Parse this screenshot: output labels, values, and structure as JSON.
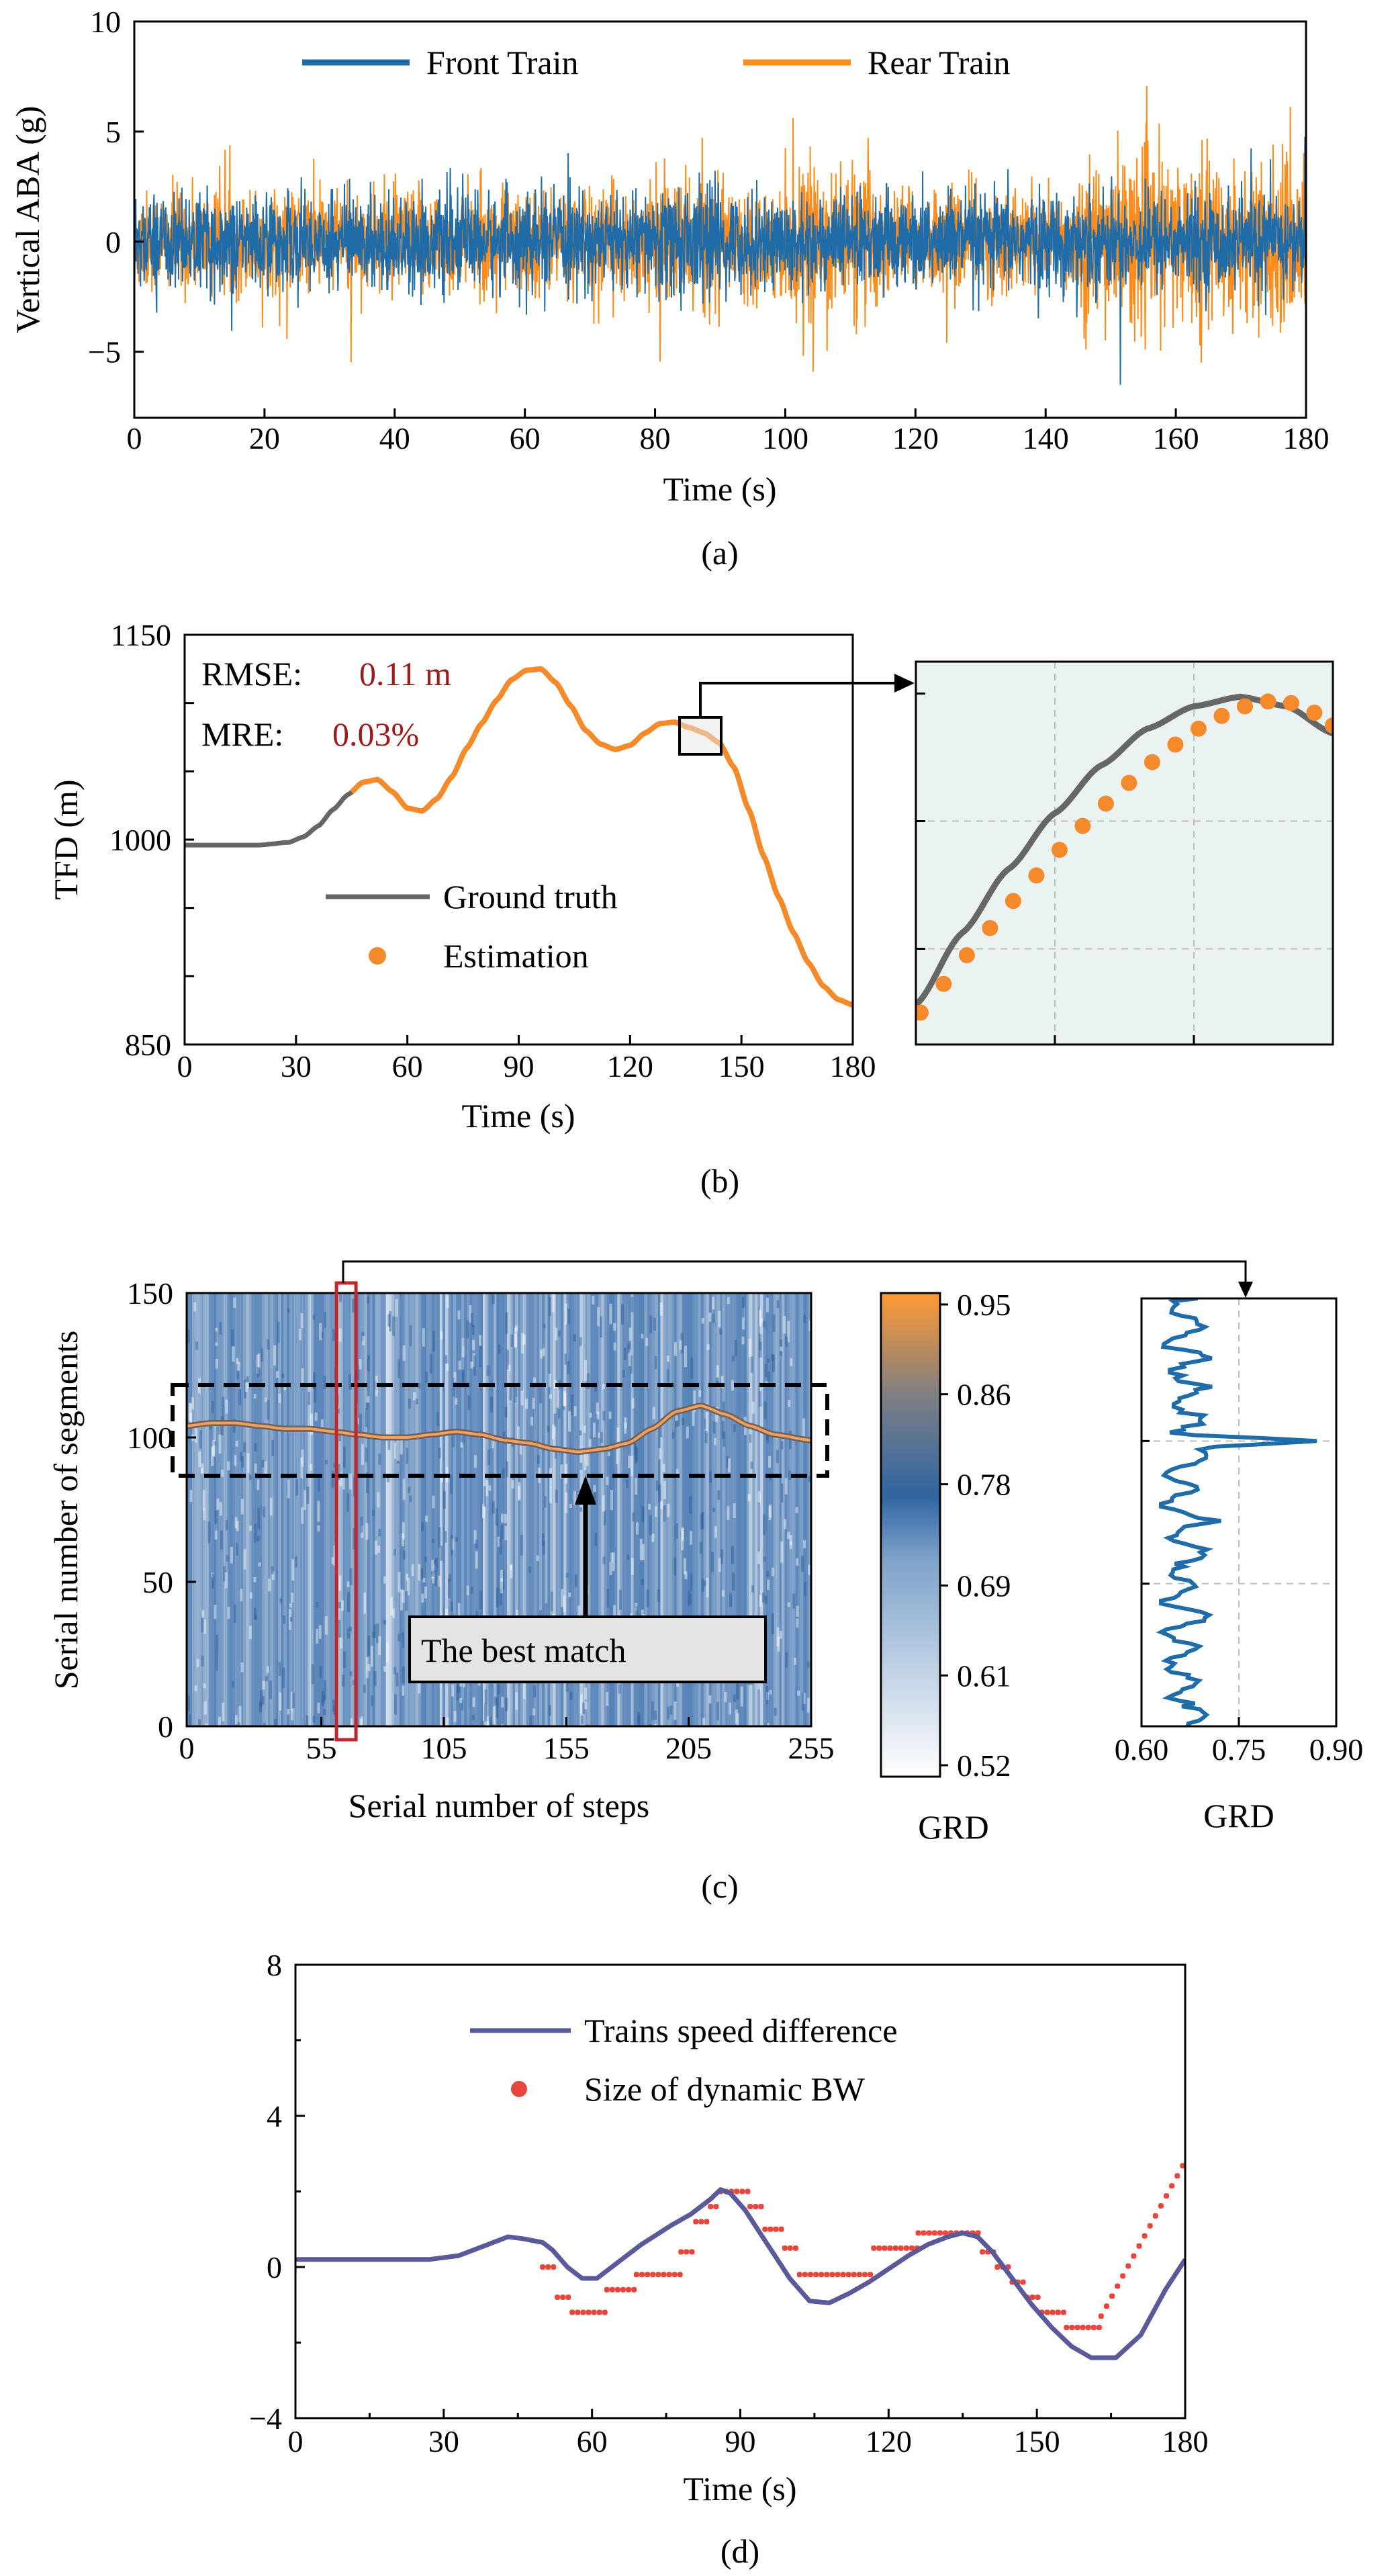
{
  "colors": {
    "front": "#1f6ca8",
    "rear": "#ff8c1a",
    "truth": "#666666",
    "estimate": "#f58a2a",
    "metric": "#9b1a1a",
    "speed": "#5a5a9a",
    "bw": "#e8453c",
    "inset_bg": "#eaf2f2",
    "highlight": "#c0282d"
  },
  "panel_a": {
    "caption": "(a)",
    "chart_data": {
      "type": "line",
      "xlabel": "Time (s)",
      "ylabel": "Vertical ABA (g)",
      "xlim": [
        0,
        180
      ],
      "ylim": [
        -8,
        10
      ],
      "xticks": [
        "0",
        "20",
        "40",
        "60",
        "80",
        "100",
        "120",
        "140",
        "160",
        "180"
      ],
      "yticks": [
        "10",
        "5",
        "0",
        "−5"
      ],
      "legend_position": "top",
      "series": [
        {
          "name": "Front Train",
          "style": "dense vibration signal",
          "typical_amplitude_g": 2.2,
          "peaks_g": [
            -5.2,
            6.3
          ]
        },
        {
          "name": "Rear Train",
          "style": "dense vibration signal",
          "typical_amplitude_g": 2.6,
          "peaks_g": [
            -5.4,
            7.1
          ]
        }
      ]
    }
  },
  "panel_b": {
    "caption": "(b)",
    "metrics": {
      "rmse_label": "RMSE:",
      "rmse_value": "0.11 m",
      "mre_label": "MRE:",
      "mre_value": "0.03%"
    },
    "chart_data": {
      "type": "line",
      "xlabel": "Time (s)",
      "ylabel": "TFD (m)",
      "xlim": [
        0,
        180
      ],
      "ylim": [
        850,
        1150
      ],
      "xticks": [
        "0",
        "30",
        "60",
        "90",
        "120",
        "150",
        "180"
      ],
      "yticks": [
        "1150",
        "1000",
        "850"
      ],
      "legend_position": "lower-left",
      "series": [
        {
          "name": "Ground truth",
          "x": [
            0,
            20,
            28,
            32,
            36,
            40,
            44,
            48,
            52,
            56,
            60,
            64,
            68,
            72,
            76,
            80,
            84,
            88,
            92,
            96,
            100,
            104,
            108,
            112,
            116,
            120,
            124,
            128,
            132,
            136,
            140,
            144,
            148,
            152,
            156,
            160,
            164,
            168,
            172,
            176,
            180
          ],
          "y": [
            996,
            996,
            998,
            1002,
            1010,
            1022,
            1033,
            1042,
            1044,
            1035,
            1023,
            1021,
            1030,
            1046,
            1067,
            1085,
            1102,
            1117,
            1124,
            1125,
            1115,
            1098,
            1080,
            1070,
            1066,
            1069,
            1078,
            1085,
            1086,
            1082,
            1078,
            1071,
            1053,
            1022,
            988,
            958,
            932,
            910,
            893,
            883,
            879
          ]
        },
        {
          "name": "Estimation",
          "x_range": [
            45,
            180
          ],
          "y_follows": "Ground truth"
        }
      ]
    },
    "inset": {
      "x_range": [
        136,
        145
      ],
      "y_range": [
        1064,
        1088
      ],
      "truth_curve": [
        [
          136,
          1066.5
        ],
        [
          137,
          1071
        ],
        [
          138,
          1075
        ],
        [
          139,
          1078.5
        ],
        [
          140,
          1081.5
        ],
        [
          141,
          1083.8
        ],
        [
          142,
          1085.2
        ],
        [
          143,
          1085.8
        ],
        [
          144,
          1085.2
        ],
        [
          145,
          1083.5
        ]
      ],
      "estimates": [
        [
          136.1,
          1066.0
        ],
        [
          136.6,
          1067.8
        ],
        [
          137.1,
          1069.6
        ],
        [
          137.6,
          1071.3
        ],
        [
          138.1,
          1073.0
        ],
        [
          138.6,
          1074.6
        ],
        [
          139.1,
          1076.2
        ],
        [
          139.6,
          1077.7
        ],
        [
          140.1,
          1079.1
        ],
        [
          140.6,
          1080.4
        ],
        [
          141.1,
          1081.7
        ],
        [
          141.6,
          1082.8
        ],
        [
          142.1,
          1083.8
        ],
        [
          142.6,
          1084.6
        ],
        [
          143.1,
          1085.2
        ],
        [
          143.6,
          1085.5
        ],
        [
          144.1,
          1085.4
        ],
        [
          144.6,
          1084.8
        ],
        [
          145.0,
          1084.0
        ]
      ]
    }
  },
  "panel_c": {
    "caption": "(c)",
    "annotation": "The best match",
    "chart_data": {
      "type": "heatmap",
      "xlabel": "Serial number of steps",
      "ylabel": "Serial number of segments",
      "xlim": [
        0,
        255
      ],
      "ylim": [
        0,
        150
      ],
      "xticks": [
        "0",
        "55",
        "105",
        "155",
        "205",
        "255"
      ],
      "yticks": [
        "150",
        "100",
        "50",
        "0"
      ],
      "best_match_path": {
        "x": [
          0,
          10,
          20,
          30,
          40,
          50,
          60,
          70,
          80,
          90,
          100,
          110,
          120,
          130,
          140,
          150,
          160,
          170,
          180,
          190,
          200,
          210,
          220,
          230,
          240,
          255
        ],
        "y": [
          104,
          105,
          105,
          104,
          103,
          103,
          102,
          101,
          100,
          100,
          101,
          102,
          101,
          99,
          98,
          96,
          95,
          96,
          98,
          103,
          109,
          111,
          108,
          104,
          101,
          99
        ]
      },
      "highlighted_step": 65
    },
    "colorbar": {
      "label": "GRD",
      "ticks": [
        "0.95",
        "0.86",
        "0.78",
        "0.69",
        "0.61",
        "0.52"
      ],
      "range": [
        0.52,
        0.95
      ]
    },
    "side_plot": {
      "xlabel": "GRD",
      "xticks": [
        "0.60",
        "0.75",
        "0.90"
      ],
      "xlim": [
        0.6,
        0.9
      ],
      "ylim": [
        0,
        150
      ],
      "peak": {
        "segment": 100,
        "grd": 0.87
      }
    }
  },
  "panel_d": {
    "caption": "(d)",
    "chart_data": {
      "type": "line",
      "xlabel": "Time (s)",
      "ylabel": "",
      "xlim": [
        0,
        180
      ],
      "ylim": [
        -4,
        8
      ],
      "xticks": [
        "0",
        "30",
        "60",
        "90",
        "120",
        "150",
        "180"
      ],
      "yticks": [
        "8",
        "4",
        "0",
        "−4"
      ],
      "legend_position": "top-center",
      "series": [
        {
          "name": "Trains speed difference",
          "x": [
            0,
            27,
            33,
            39,
            43,
            46,
            50,
            52,
            55,
            58,
            61,
            64,
            67,
            70,
            73,
            76,
            80,
            84,
            86,
            88,
            91,
            94,
            97,
            100,
            104,
            108,
            112,
            116,
            120,
            124,
            128,
            132,
            135,
            138,
            141,
            145,
            149,
            153,
            157,
            161,
            166,
            171,
            176,
            180
          ],
          "y": [
            0.2,
            0.2,
            0.3,
            0.6,
            0.8,
            0.75,
            0.65,
            0.45,
            0.0,
            -0.3,
            -0.3,
            0.0,
            0.3,
            0.6,
            0.85,
            1.1,
            1.4,
            1.8,
            2.05,
            1.95,
            1.5,
            0.9,
            0.3,
            -0.3,
            -0.9,
            -0.95,
            -0.7,
            -0.4,
            -0.05,
            0.3,
            0.6,
            0.8,
            0.9,
            0.8,
            0.4,
            -0.3,
            -1.0,
            -1.6,
            -2.1,
            -2.4,
            -2.4,
            -1.8,
            -0.6,
            0.2
          ]
        },
        {
          "name": "Size of dynamic BW",
          "segments": [
            [
              50,
              53,
              0.0
            ],
            [
              53,
              56,
              -0.8
            ],
            [
              56,
              63,
              -1.2
            ],
            [
              63,
              69,
              -0.6
            ],
            [
              69,
              78,
              -0.2
            ],
            [
              78,
              81,
              0.4
            ],
            [
              81,
              84,
              1.2
            ],
            [
              84,
              86,
              1.6
            ],
            [
              86,
              92,
              2.0
            ],
            [
              92,
              95,
              1.6
            ],
            [
              95,
              99,
              1.0
            ],
            [
              99,
              102,
              0.5
            ],
            [
              102,
              117,
              -0.2
            ],
            [
              117,
              126,
              0.5
            ],
            [
              126,
              139,
              0.9
            ],
            [
              139,
              142,
              0.4
            ],
            [
              142,
              145,
              0.0
            ],
            [
              145,
              148,
              -0.4
            ],
            [
              148,
              151,
              -0.8
            ],
            [
              151,
              156,
              -1.2
            ],
            [
              156,
              163,
              -1.6
            ]
          ],
          "ramp": {
            "x_range": [
              163,
              180
            ],
            "y_range": [
              -1.3,
              2.8
            ]
          }
        }
      ]
    }
  }
}
